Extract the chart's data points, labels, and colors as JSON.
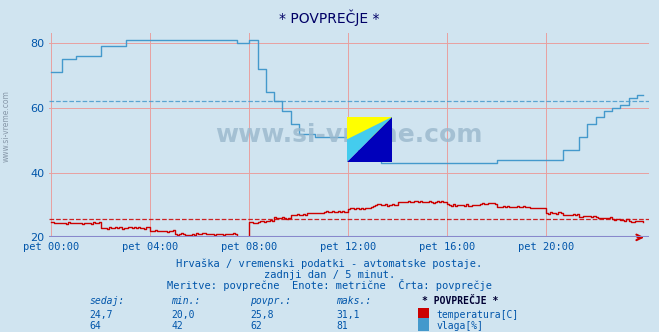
{
  "title": "* POVPREČJE *",
  "background_color": "#d0e4f0",
  "plot_bg_color": "#d0e4f0",
  "ylim": [
    20,
    83
  ],
  "yticks": [
    20,
    40,
    60,
    80
  ],
  "xtick_labels": [
    "pet 00:00",
    "pet 04:00",
    "pet 08:00",
    "pet 12:00",
    "pet 16:00",
    "pet 20:00"
  ],
  "xtick_positions": [
    0,
    48,
    96,
    144,
    192,
    240
  ],
  "grid_h_color": "#e8a0a0",
  "grid_v_color": "#e8a0a0",
  "temp_color": "#cc0000",
  "humidity_color": "#4499cc",
  "temp_avg": 25.8,
  "hum_avg": 62,
  "footer_line1": "Hrvaška / vremenski podatki - avtomatske postaje.",
  "footer_line2": "zadnji dan / 5 minut.",
  "footer_line3": "Meritve: povprečne  Enote: metrične  Črta: povprečje",
  "watermark": "www.si-vreme.com",
  "text_color": "#0055aa",
  "title_color": "#000066",
  "stats_label_color": "#0055aa",
  "stats_value_color": "#0055aa"
}
